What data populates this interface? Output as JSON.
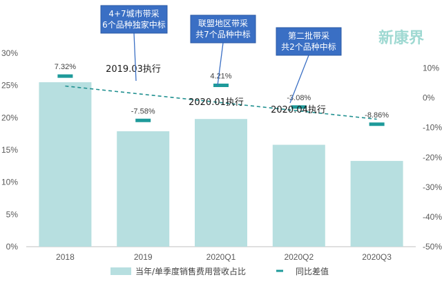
{
  "chart_data": {
    "type": "bar",
    "categories": [
      "2018",
      "2019",
      "2020Q1",
      "2020Q2",
      "2020Q3"
    ],
    "series": [
      {
        "name": "当年/单季度销售费用营收占比",
        "axis": "left",
        "kind": "bar",
        "color": "#b7dfe0",
        "values": [
          25.5,
          17.9,
          19.8,
          15.8,
          13.3
        ]
      },
      {
        "name": "同比差值",
        "axis": "right",
        "kind": "marker",
        "color": "#1e9a9a",
        "values": [
          7.32,
          -7.58,
          4.21,
          -3.08,
          -8.86
        ],
        "labels": [
          "7.32%",
          "-7.58%",
          "4.21%",
          "-3.08%",
          "-8.86%"
        ]
      }
    ],
    "y_left": {
      "ylim": [
        0,
        30
      ],
      "ticks": [
        "0%",
        "5%",
        "10%",
        "15%",
        "20%",
        "25%",
        "30%"
      ]
    },
    "y_right": {
      "ylim": [
        -50,
        15
      ],
      "ticks": [
        "-50%",
        "-40%",
        "-30%",
        "-20%",
        "-10%",
        "0%",
        "10%"
      ]
    },
    "trendline": {
      "style": "dashed",
      "color": "#1e8f8f"
    },
    "annotations": {
      "plain": [
        "2019.03执行",
        "2020.01执行",
        "2020.04执行"
      ],
      "callouts": [
        [
          "4+7城市带采",
          "6个品种独家中标"
        ],
        [
          "联盟地区带采",
          "共7个品种中标"
        ],
        [
          "第二批带采",
          "共2个品种中标"
        ]
      ]
    },
    "legend": {
      "placement": "bottom"
    },
    "grid": false
  },
  "watermark": {
    "text": "新康界"
  },
  "colors": {
    "bar": "#b7dfe0",
    "marker": "#1e9a9a",
    "callout": "#3a6fc4"
  }
}
